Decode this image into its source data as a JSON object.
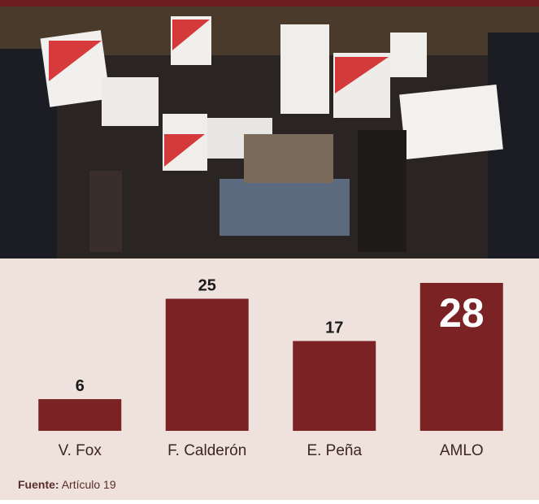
{
  "chart_data": {
    "type": "bar",
    "categories": [
      "V. Fox",
      "F. Calderón",
      "E. Peña",
      "AMLO"
    ],
    "values": [
      6,
      25,
      17,
      28
    ],
    "color": "#7b2324",
    "highlight_label_color": "#ffffff",
    "source_label": "Fuente:",
    "source": "Artículo 19"
  }
}
